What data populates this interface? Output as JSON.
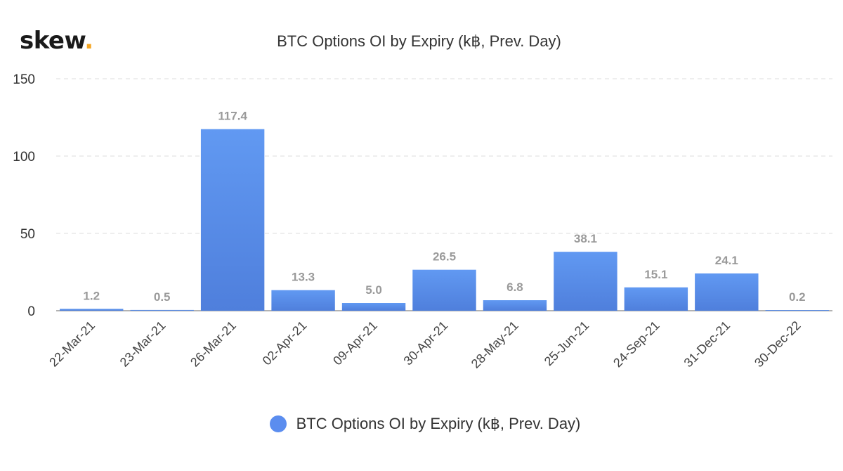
{
  "logo": {
    "text": "skew",
    "dot": "."
  },
  "chart_data": {
    "type": "bar",
    "title": "BTC Options OI by Expiry (k฿, Prev. Day)",
    "categories": [
      "22-Mar-21",
      "23-Mar-21",
      "26-Mar-21",
      "02-Apr-21",
      "09-Apr-21",
      "30-Apr-21",
      "28-May-21",
      "25-Jun-21",
      "24-Sep-21",
      "31-Dec-21",
      "30-Dec-22"
    ],
    "series": [
      {
        "name": "BTC Options OI by Expiry (k฿, Prev. Day)",
        "values": [
          1.2,
          0.5,
          117.4,
          13.3,
          5.0,
          26.5,
          6.8,
          38.1,
          15.1,
          24.1,
          0.2
        ],
        "labels": [
          "1.2",
          "0.5",
          "117.4",
          "13.3",
          "5.0",
          "26.5",
          "6.8",
          "38.1",
          "15.1",
          "24.1",
          "0.2"
        ],
        "color": "#5b8def"
      }
    ],
    "ylim": [
      0,
      150
    ],
    "yticks": [
      0,
      50,
      100,
      150
    ],
    "grid": true,
    "legend_position": "bottom-center"
  }
}
